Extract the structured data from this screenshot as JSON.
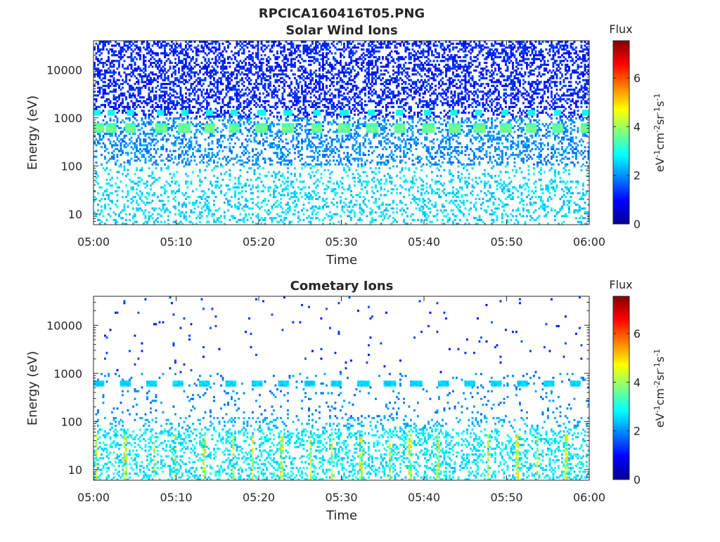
{
  "figure_title": "RPCICA160416T05.PNG",
  "colormap": "jet",
  "chart_data": [
    {
      "type": "heatmap",
      "title": "Solar Wind Ions",
      "xlabel": "Time",
      "ylabel": "Energy (eV)",
      "xticks": [
        "05:00",
        "05:10",
        "05:20",
        "05:30",
        "05:40",
        "05:50",
        "06:00"
      ],
      "xlim": [
        "05:00",
        "06:00"
      ],
      "yscale": "log",
      "yticks": [
        10,
        100,
        1000,
        10000
      ],
      "ylim": [
        6,
        40000
      ],
      "colorbar": {
        "label": "Flux",
        "unit": "eV^-1 cm^-2 sr^-1 s^-1",
        "ticks": [
          0,
          2,
          4,
          6
        ],
        "range": [
          0,
          7.5
        ]
      },
      "features": {
        "main_beam_energy_eV": 600,
        "main_beam_flux": 3.5,
        "alpha_beam_energy_eV": 1300,
        "alpha_beam_flux": 2.7,
        "beam_times": [
          "05:00:30",
          "05:02:10",
          "05:04:30",
          "05:08:10",
          "05:11:00",
          "05:14:00",
          "05:17:00",
          "05:20:20",
          "05:23:30",
          "05:27:00",
          "05:30:20",
          "05:33:40",
          "05:37:00",
          "05:40:30",
          "05:43:40",
          "05:46:40",
          "05:49:50",
          "05:53:00",
          "05:56:10",
          "05:59:40"
        ],
        "background": "scattered low-flux counts 10 eV to 40 keV, flux ~1-2.5"
      }
    },
    {
      "type": "heatmap",
      "title": "Cometary Ions",
      "xlabel": "Time",
      "ylabel": "Energy (eV)",
      "xticks": [
        "05:00",
        "05:10",
        "05:20",
        "05:30",
        "05:40",
        "05:50",
        "06:00"
      ],
      "xlim": [
        "05:00",
        "06:00"
      ],
      "yscale": "log",
      "yticks": [
        10,
        100,
        1000,
        10000
      ],
      "ylim": [
        6,
        40000
      ],
      "colorbar": {
        "label": "Flux",
        "unit": "eV^-1 cm^-2 sr^-1 s^-1",
        "ticks": [
          0,
          2,
          4,
          6
        ],
        "range": [
          0,
          7.5
        ]
      },
      "features": {
        "beam_energy_eV": 600,
        "beam_flux": 2.3,
        "low_energy_band_eV": [
          6,
          60
        ],
        "low_energy_peak_flux": 5.2,
        "background": "sparse isolated counts above 1 keV, flux ~1-2"
      }
    }
  ]
}
